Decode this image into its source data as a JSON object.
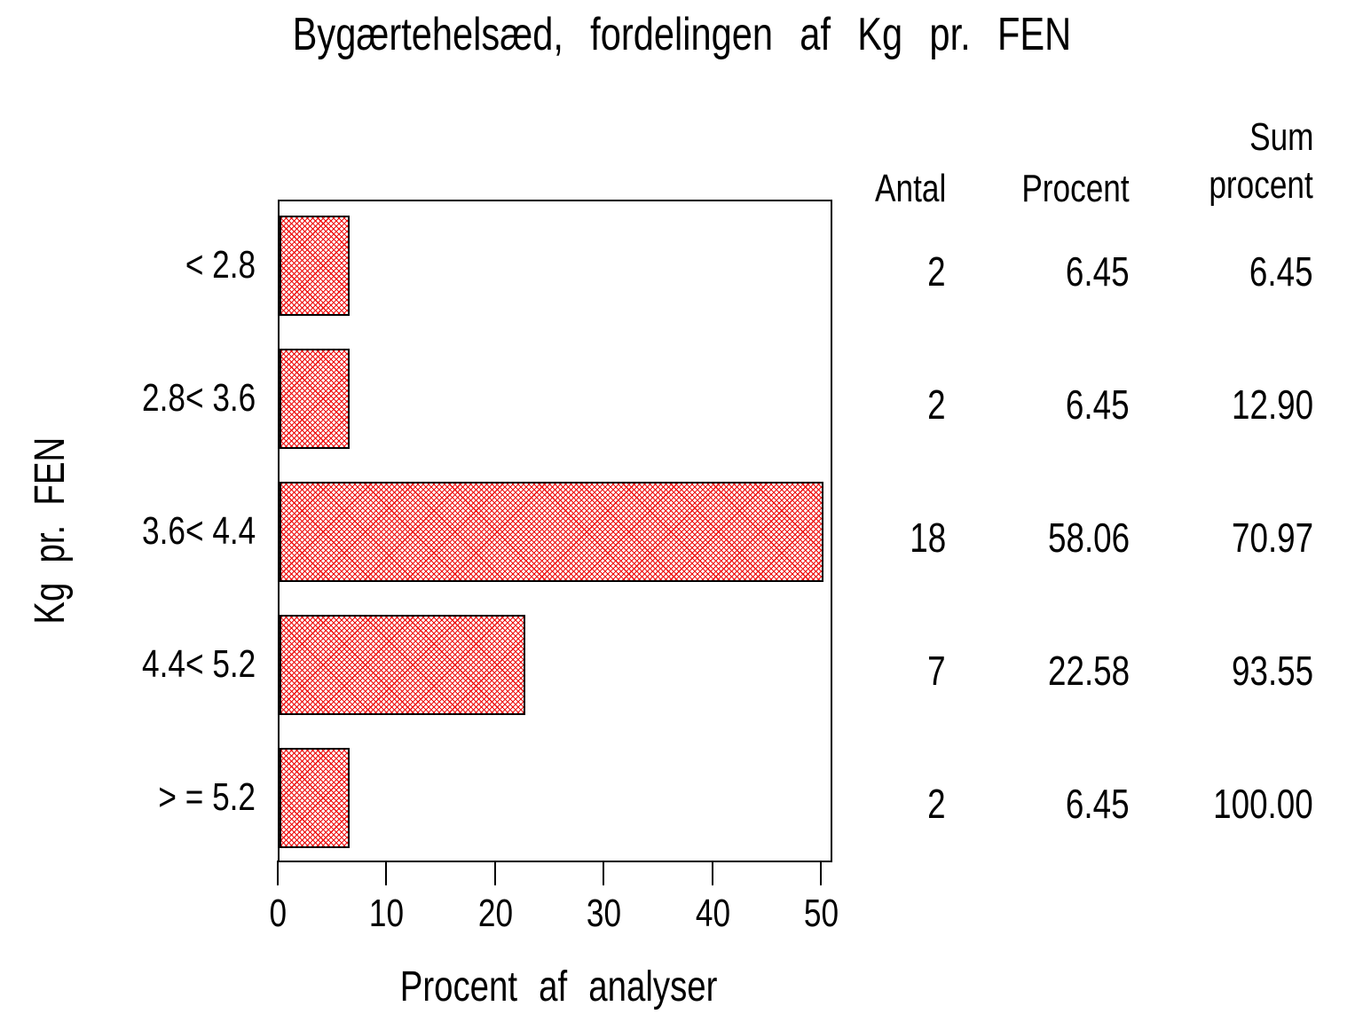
{
  "title": "Bygærtehelsæd,  fordelingen  af  Kg  pr.  FEN",
  "chart_data": {
    "type": "bar",
    "orientation": "horizontal",
    "title": "Bygærtehelsæd, fordelingen af Kg pr. FEN",
    "categories": [
      "< 2.8",
      "2.8< 3.6",
      "3.6< 4.4",
      "4.4< 5.2",
      "> = 5.2"
    ],
    "values": [
      6.45,
      6.45,
      58.06,
      22.58,
      6.45
    ],
    "counts": [
      2,
      2,
      18,
      7,
      2
    ],
    "cumulative_percent": [
      6.45,
      12.9,
      70.97,
      93.55,
      100.0
    ],
    "xlabel": "Procent af analyser",
    "ylabel": "Kg pr. FEN",
    "xlim": [
      0,
      50
    ],
    "xticks": [
      "0",
      "10",
      "20",
      "30",
      "40",
      "50"
    ],
    "bars_clipped_at_xmax": true,
    "bar_pattern": "red-crosshatch",
    "bar_color": "#ee0b0b",
    "frame": "on",
    "grid": "off",
    "legend": "none"
  },
  "table": {
    "headers": {
      "antal": "Antal",
      "procent": "Procent",
      "sum_line1": "Sum",
      "sum_line2": "procent"
    },
    "rows": [
      {
        "antal": "2",
        "procent": "6.45",
        "sum": "6.45"
      },
      {
        "antal": "2",
        "procent": "6.45",
        "sum": "12.90"
      },
      {
        "antal": "18",
        "procent": "58.06",
        "sum": "70.97"
      },
      {
        "antal": "7",
        "procent": "22.58",
        "sum": "93.55"
      },
      {
        "antal": "2",
        "procent": "6.45",
        "sum": "100.00"
      }
    ]
  },
  "colors": {
    "bar_hatch": "#ee0b0b",
    "axis": "#000000",
    "background": "#ffffff"
  }
}
